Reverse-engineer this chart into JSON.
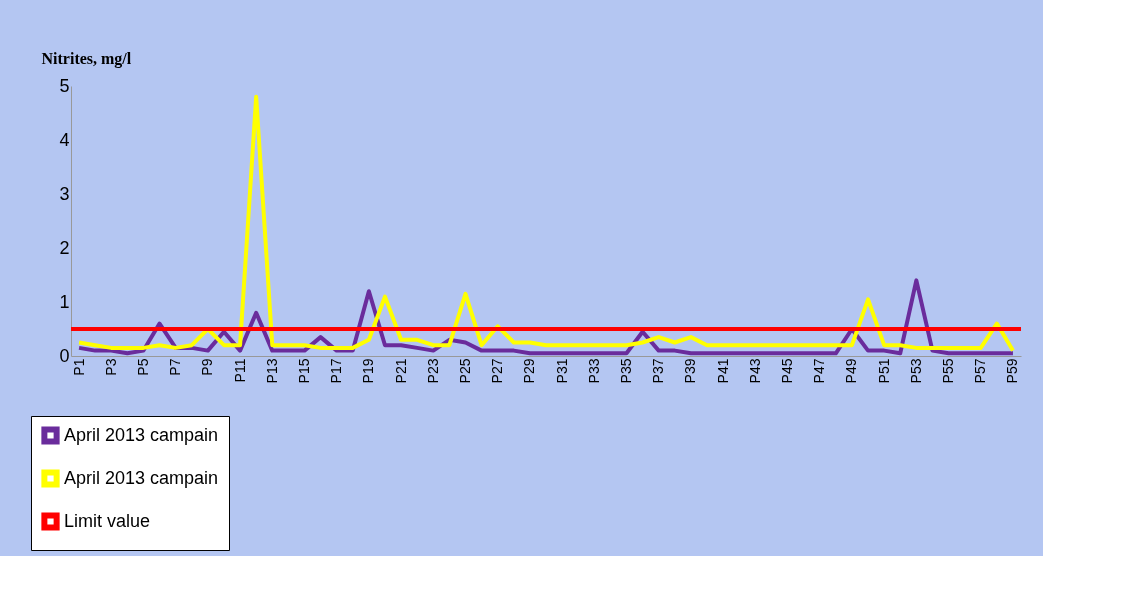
{
  "chart_data": {
    "type": "line",
    "ylabel": "Nitrites, mg/l",
    "categories": [
      "P1",
      null,
      "P3",
      null,
      "P5",
      null,
      "P7",
      null,
      "P9",
      null,
      "P11",
      null,
      "P13",
      null,
      "P15",
      null,
      "P17",
      null,
      "P19",
      null,
      "P21",
      null,
      "P23",
      null,
      "P25",
      null,
      "P27",
      null,
      "P29",
      null,
      "P31",
      null,
      "P33",
      null,
      "P35",
      null,
      "P37",
      null,
      "P39",
      null,
      "P41",
      null,
      "P43",
      null,
      "P45",
      null,
      "P47",
      null,
      "P49",
      null,
      "P51",
      null,
      "P53",
      null,
      "P55",
      null,
      "P57",
      null,
      "P59"
    ],
    "series": [
      {
        "name": "April 2013 campain",
        "color": "#6a2c9c",
        "values": [
          0.15,
          0.1,
          0.1,
          0.05,
          0.1,
          0.6,
          0.15,
          0.15,
          0.1,
          0.45,
          0.1,
          0.8,
          0.1,
          0.1,
          0.1,
          0.35,
          0.1,
          0.1,
          1.2,
          0.2,
          0.2,
          0.15,
          0.1,
          0.3,
          0.25,
          0.1,
          0.1,
          0.1,
          0.05,
          0.05,
          0.05,
          0.05,
          0.05,
          0.05,
          0.05,
          0.45,
          0.1,
          0.1,
          0.05,
          0.05,
          0.05,
          0.05,
          0.05,
          0.05,
          0.05,
          0.05,
          0.05,
          0.05,
          0.5,
          0.1,
          0.1,
          0.05,
          1.4,
          0.1,
          0.05,
          0.05,
          0.05,
          0.05,
          0.05
        ]
      },
      {
        "name": "April 2013 campain",
        "color": "#ffff00",
        "values": [
          0.25,
          0.2,
          0.15,
          0.15,
          0.15,
          0.2,
          0.15,
          0.2,
          0.5,
          0.2,
          0.2,
          4.8,
          0.2,
          0.2,
          0.2,
          0.15,
          0.15,
          0.15,
          0.3,
          1.1,
          0.3,
          0.3,
          0.2,
          0.2,
          1.15,
          0.2,
          0.55,
          0.25,
          0.25,
          0.2,
          0.2,
          0.2,
          0.2,
          0.2,
          0.2,
          0.25,
          0.35,
          0.25,
          0.35,
          0.2,
          0.2,
          0.2,
          0.2,
          0.2,
          0.2,
          0.2,
          0.2,
          0.2,
          0.2,
          1.05,
          0.2,
          0.2,
          0.15,
          0.15,
          0.15,
          0.15,
          0.15,
          0.6,
          0.1
        ]
      }
    ],
    "ref_lines": [
      {
        "axis": "y",
        "value": 0.5,
        "label": "Limit value",
        "color": "#ff0000"
      }
    ],
    "ylim": [
      0,
      5
    ],
    "yticks": [
      0,
      1,
      2,
      3,
      4,
      5
    ],
    "grid": false,
    "legend": "bottom left",
    "marker": "none",
    "line_style": "solid"
  }
}
